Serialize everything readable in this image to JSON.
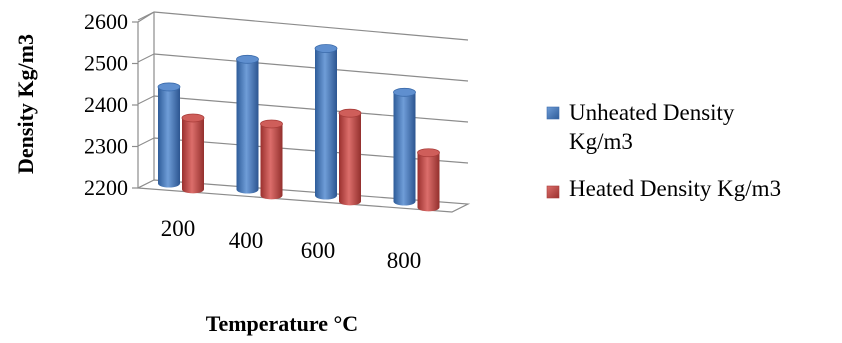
{
  "chart_data": {
    "type": "bar",
    "title": "",
    "xlabel": "Temperature  °C",
    "ylabel": "Density Kg/m3",
    "categories": [
      "200",
      "400",
      "600",
      "800"
    ],
    "series": [
      {
        "name": "Unheated Density Kg/m3",
        "values": [
          2430,
          2510,
          2550,
          2460
        ]
      },
      {
        "name": "Heated Density Kg/m3",
        "values": [
          2370,
          2370,
          2410,
          2330
        ]
      }
    ],
    "yticks": [
      "2200",
      "2300",
      "2400",
      "2500",
      "2600"
    ],
    "ylim": [
      2200,
      2600
    ],
    "grid": true,
    "legend_position": "right",
    "colors": [
      "#4a7ebb",
      "#be4b48"
    ]
  }
}
